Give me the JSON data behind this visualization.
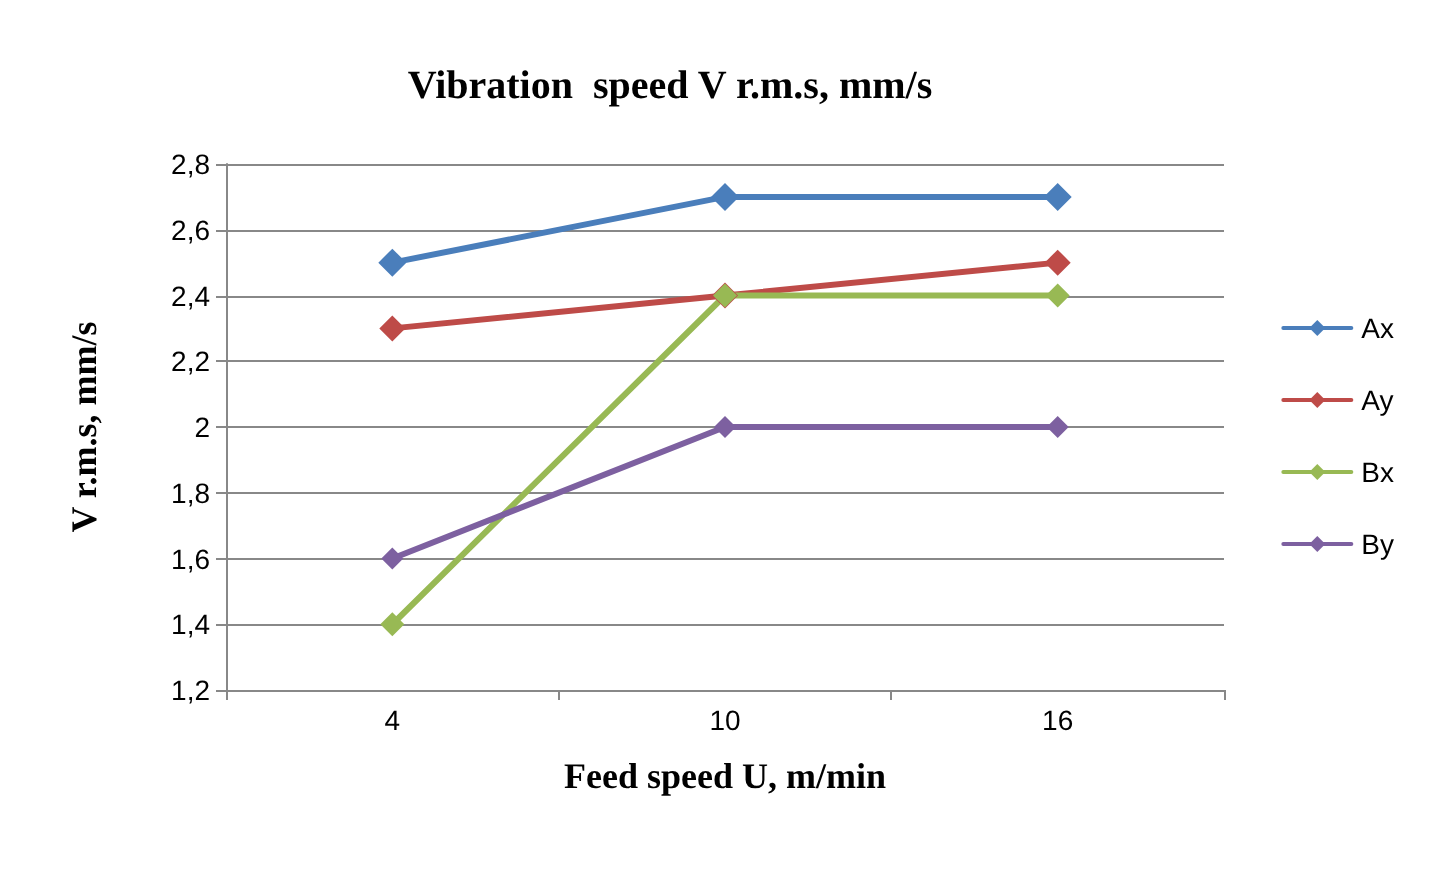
{
  "chart_data": {
    "type": "line",
    "title": "Vibration  speed V r.m.s, mm/s",
    "xlabel": "Feed speed U, m/min",
    "ylabel": "V r.m.s, mm/s",
    "categories": [
      "4",
      "10",
      "16"
    ],
    "series": [
      {
        "name": "Ax",
        "color": "#4a7ebb",
        "values": [
          2.5,
          2.7,
          2.7
        ]
      },
      {
        "name": "Ay",
        "color": "#be4b48",
        "values": [
          2.3,
          2.4,
          2.5
        ]
      },
      {
        "name": "Bx",
        "color": "#98b954",
        "values": [
          1.4,
          2.4,
          2.4
        ]
      },
      {
        "name": "By",
        "color": "#7d60a0",
        "values": [
          1.6,
          2.0,
          2.0
        ]
      }
    ],
    "ylim": [
      1.2,
      2.8
    ],
    "yticks": [
      {
        "value": 1.2,
        "label": "1,2"
      },
      {
        "value": 1.4,
        "label": "1,4"
      },
      {
        "value": 1.6,
        "label": "1,6"
      },
      {
        "value": 1.8,
        "label": "1,8"
      },
      {
        "value": 2,
        "label": "2"
      },
      {
        "value": 2.2,
        "label": "2,2"
      },
      {
        "value": 2.4,
        "label": "2,4"
      },
      {
        "value": 2.6,
        "label": "2,6"
      },
      {
        "value": 2.8,
        "label": "2,8"
      }
    ],
    "grid": "y",
    "legend": "right",
    "marker": "diamond",
    "line_style": "solid"
  }
}
